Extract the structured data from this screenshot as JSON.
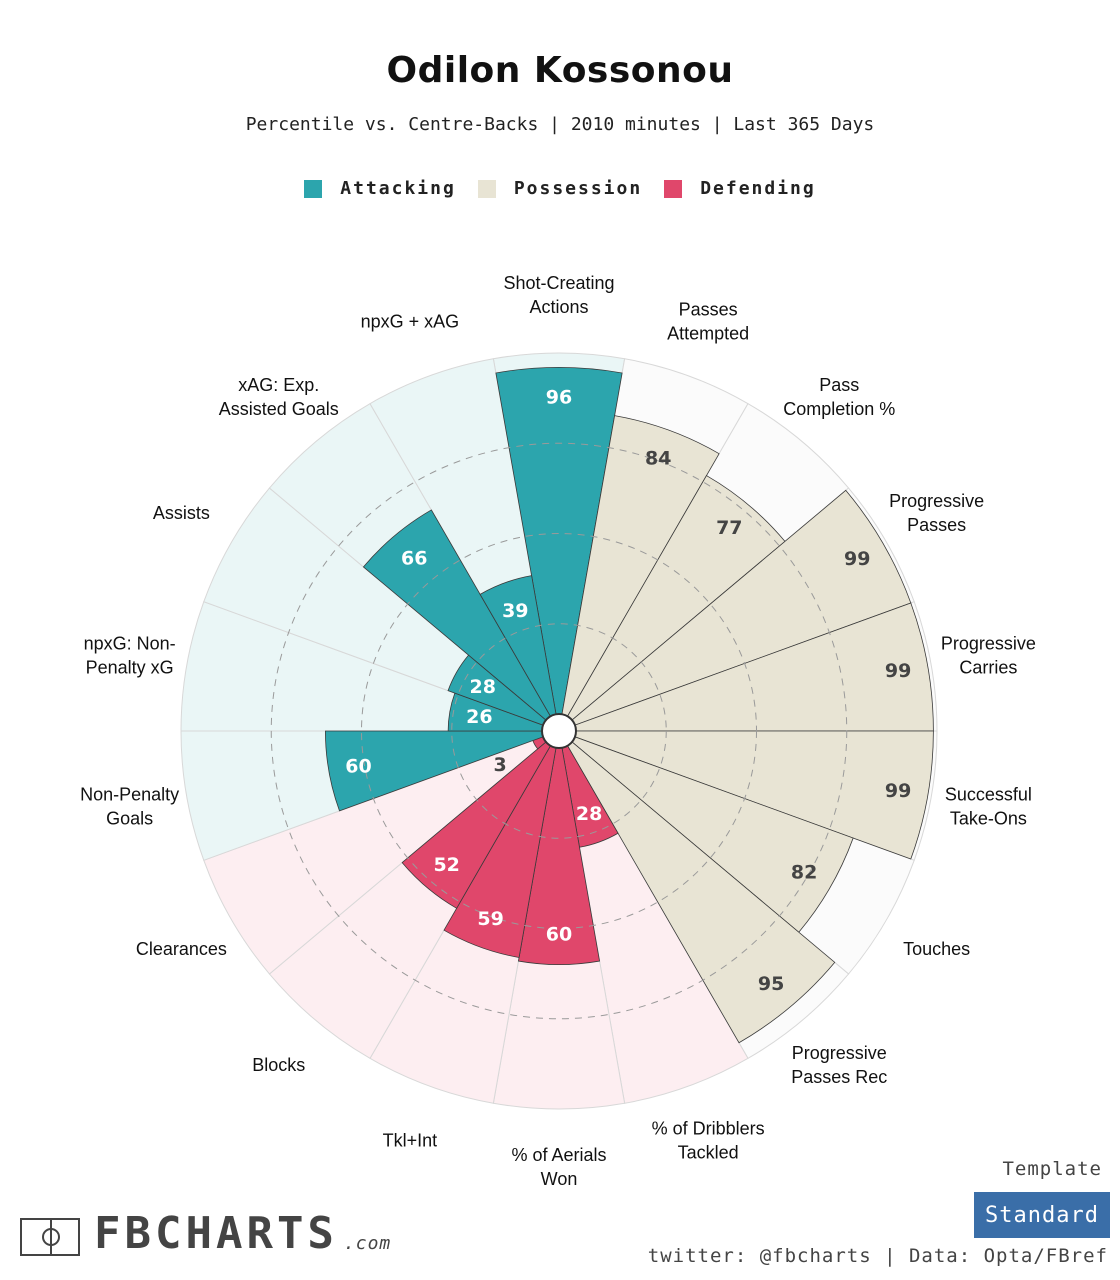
{
  "header": {
    "title": "Odilon Kossonou",
    "subtitle": "Percentile vs. Centre-Backs | 2010 minutes | Last 365 Days"
  },
  "legend": [
    {
      "label": "Attacking",
      "color": "#2ca5ad"
    },
    {
      "label": "Possession",
      "color": "#e8e4d4"
    },
    {
      "label": "Defending",
      "color": "#e0476b"
    }
  ],
  "chart_data": {
    "type": "radial-bar",
    "range": [
      0,
      100
    ],
    "categories": [
      {
        "label": [
          "Shot-Creating",
          "Actions"
        ],
        "value": 96,
        "group": "Attacking"
      },
      {
        "label": [
          "Passes",
          "Attempted"
        ],
        "value": 84,
        "group": "Possession"
      },
      {
        "label": [
          "Pass",
          "Completion %"
        ],
        "value": 77,
        "group": "Possession"
      },
      {
        "label": [
          "Progressive",
          "Passes"
        ],
        "value": 99,
        "group": "Possession"
      },
      {
        "label": [
          "Progressive",
          "Carries"
        ],
        "value": 99,
        "group": "Possession"
      },
      {
        "label": [
          "Successful",
          "Take-Ons"
        ],
        "value": 99,
        "group": "Possession"
      },
      {
        "label": [
          "Touches"
        ],
        "value": 82,
        "group": "Possession"
      },
      {
        "label": [
          "Progressive",
          "Passes Rec"
        ],
        "value": 95,
        "group": "Possession"
      },
      {
        "label": [
          "% of Dribblers",
          "Tackled"
        ],
        "value": 28,
        "group": "Defending"
      },
      {
        "label": [
          "% of Aerials",
          "Won"
        ],
        "value": 60,
        "group": "Defending"
      },
      {
        "label": [
          "Tkl+Int"
        ],
        "value": 59,
        "group": "Defending"
      },
      {
        "label": [
          "Blocks"
        ],
        "value": 52,
        "group": "Defending"
      },
      {
        "label": [
          "Clearances"
        ],
        "value": 3,
        "group": "Defending"
      },
      {
        "label": [
          "Non-Penalty",
          "Goals"
        ],
        "value": 60,
        "group": "Attacking"
      },
      {
        "label": [
          "npxG: Non-",
          "Penalty xG"
        ],
        "value": 26,
        "group": "Attacking"
      },
      {
        "label": [
          "Assists"
        ],
        "value": 28,
        "group": "Attacking"
      },
      {
        "label": [
          "xAG: Exp.",
          "Assisted Goals"
        ],
        "value": 66,
        "group": "Attacking"
      },
      {
        "label": [
          "npxG + xAG"
        ],
        "value": 39,
        "group": "Attacking"
      }
    ],
    "group_colors": {
      "Attacking": "#2ca5ad",
      "Possession": "#e8e4d4",
      "Defending": "#e0476b"
    },
    "background_colors": {
      "Attacking": "#eaf6f6",
      "Possession": "#fbfbfb",
      "Defending": "#fdeef1"
    },
    "gridlines": [
      25,
      50,
      75
    ]
  },
  "footer": {
    "template_label": "Template",
    "template_button": "Standard",
    "credit": "twitter: @fbcharts | Data: Opta/FBref",
    "logo_text": "FBCHARTS",
    "logo_suffix": ".com"
  }
}
